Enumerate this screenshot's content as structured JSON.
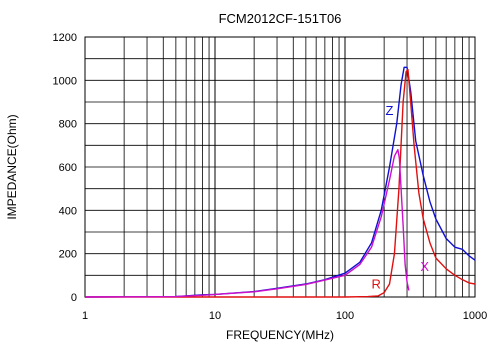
{
  "chart_data": {
    "type": "line",
    "title": "FCM2012CF-151T06",
    "xlabel": "FREQUENCY(MHz)",
    "ylabel": "IMPEDANCE(Ohm)",
    "xscale": "log",
    "xlim": [
      1,
      1000
    ],
    "ylim": [
      0,
      1200
    ],
    "x_ticks": [
      "1",
      "10",
      "100",
      "1000"
    ],
    "y_ticks": [
      "0",
      "200",
      "400",
      "600",
      "800",
      "1000",
      "1200"
    ],
    "grid": true,
    "series": [
      {
        "name": "Z",
        "color": "#1010d0",
        "points": [
          [
            1,
            0
          ],
          [
            3,
            1
          ],
          [
            5,
            2
          ],
          [
            8,
            10
          ],
          [
            10,
            12
          ],
          [
            20,
            25
          ],
          [
            30,
            40
          ],
          [
            50,
            60
          ],
          [
            70,
            80
          ],
          [
            100,
            110
          ],
          [
            130,
            160
          ],
          [
            160,
            250
          ],
          [
            190,
            400
          ],
          [
            220,
            600
          ],
          [
            250,
            800
          ],
          [
            270,
            980
          ],
          [
            285,
            1060
          ],
          [
            300,
            1060
          ],
          [
            320,
            950
          ],
          [
            350,
            720
          ],
          [
            400,
            560
          ],
          [
            450,
            440
          ],
          [
            500,
            360
          ],
          [
            600,
            270
          ],
          [
            700,
            230
          ],
          [
            800,
            220
          ],
          [
            900,
            190
          ],
          [
            1000,
            170
          ]
        ]
      },
      {
        "name": "R",
        "color": "#e01010",
        "points": [
          [
            1,
            0
          ],
          [
            10,
            0
          ],
          [
            100,
            0
          ],
          [
            150,
            2
          ],
          [
            180,
            5
          ],
          [
            200,
            20
          ],
          [
            220,
            60
          ],
          [
            240,
            200
          ],
          [
            260,
            500
          ],
          [
            280,
            900
          ],
          [
            295,
            1040
          ],
          [
            305,
            1050
          ],
          [
            320,
            900
          ],
          [
            340,
            700
          ],
          [
            370,
            480
          ],
          [
            400,
            360
          ],
          [
            450,
            250
          ],
          [
            500,
            180
          ],
          [
            600,
            130
          ],
          [
            700,
            100
          ],
          [
            800,
            80
          ],
          [
            900,
            65
          ],
          [
            1000,
            60
          ]
        ]
      },
      {
        "name": "X",
        "color": "#cc10cc",
        "points": [
          [
            1,
            0
          ],
          [
            3,
            1
          ],
          [
            5,
            2
          ],
          [
            8,
            8
          ],
          [
            10,
            12
          ],
          [
            20,
            24
          ],
          [
            30,
            38
          ],
          [
            50,
            58
          ],
          [
            70,
            78
          ],
          [
            100,
            100
          ],
          [
            130,
            150
          ],
          [
            160,
            230
          ],
          [
            190,
            370
          ],
          [
            220,
            540
          ],
          [
            240,
            650
          ],
          [
            255,
            680
          ],
          [
            262,
            640
          ],
          [
            270,
            500
          ],
          [
            280,
            330
          ],
          [
            290,
            150
          ],
          [
            300,
            70
          ],
          [
            310,
            30
          ]
        ]
      }
    ]
  }
}
